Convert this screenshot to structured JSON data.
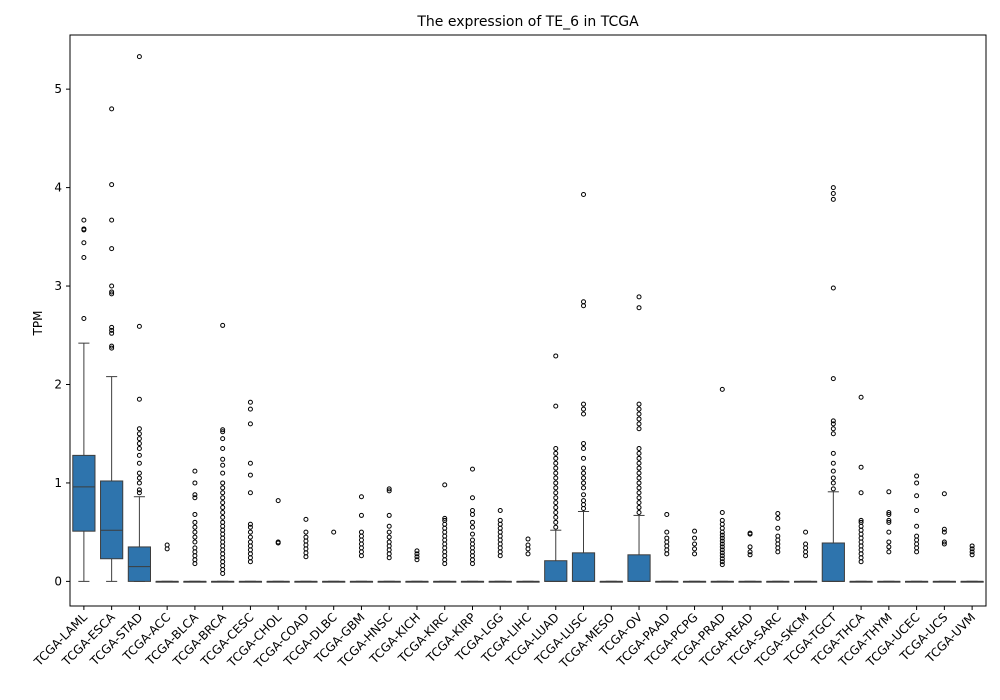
{
  "chart_data": {
    "type": "box",
    "title": "The expression of TE_6 in TCGA",
    "xlabel": "",
    "ylabel": "TPM",
    "ylim": [
      -0.25,
      5.55
    ],
    "yticks": [
      0,
      1,
      2,
      3,
      4,
      5
    ],
    "grid": false,
    "box_color": "#2e74ad",
    "categories": [
      "TCGA-LAML",
      "TCGA-ESCA",
      "TCGA-STAD",
      "TCGA-ACC",
      "TCGA-BLCA",
      "TCGA-BRCA",
      "TCGA-CESC",
      "TCGA-CHOL",
      "TCGA-COAD",
      "TCGA-DLBC",
      "TCGA-GBM",
      "TCGA-HNSC",
      "TCGA-KICH",
      "TCGA-KIRC",
      "TCGA-KIRP",
      "TCGA-LGG",
      "TCGA-LIHC",
      "TCGA-LUAD",
      "TCGA-LUSC",
      "TCGA-MESO",
      "TCGA-OV",
      "TCGA-PAAD",
      "TCGA-PCPG",
      "TCGA-PRAD",
      "TCGA-READ",
      "TCGA-SARC",
      "TCGA-SKCM",
      "TCGA-TGCT",
      "TCGA-THCA",
      "TCGA-THYM",
      "TCGA-UCEC",
      "TCGA-UCS",
      "TCGA-UVM"
    ],
    "boxes": [
      {
        "q1": 0.51,
        "median": 0.96,
        "q3": 1.28,
        "whisker_low": 0,
        "whisker_high": 2.42,
        "outliers": [
          2.67,
          3.29,
          3.44,
          3.57,
          3.58,
          3.67
        ]
      },
      {
        "q1": 0.23,
        "median": 0.52,
        "q3": 1.02,
        "whisker_low": 0,
        "whisker_high": 2.08,
        "outliers": [
          2.37,
          2.39,
          2.52,
          2.55,
          2.58,
          2.92,
          2.94,
          3.0,
          3.38,
          3.67,
          4.03,
          4.8
        ]
      },
      {
        "q1": 0,
        "median": 0.15,
        "q3": 0.35,
        "whisker_low": 0,
        "whisker_high": 0.86,
        "outliers": [
          0.9,
          0.93,
          1.0,
          1.05,
          1.1,
          1.2,
          1.28,
          1.35,
          1.4,
          1.45,
          1.5,
          1.55,
          1.85,
          2.59,
          5.33
        ]
      },
      {
        "q1": 0,
        "median": 0,
        "q3": 0,
        "whisker_low": 0,
        "whisker_high": 0,
        "outliers": [
          0.33,
          0.37
        ]
      },
      {
        "q1": 0,
        "median": 0,
        "q3": 0,
        "whisker_low": 0,
        "whisker_high": 0,
        "outliers": [
          0.18,
          0.22,
          0.26,
          0.3,
          0.34,
          0.4,
          0.45,
          0.5,
          0.55,
          0.6,
          0.68,
          0.85,
          0.88,
          1.0,
          1.12
        ]
      },
      {
        "q1": 0,
        "median": 0,
        "q3": 0,
        "whisker_low": 0,
        "whisker_high": 0,
        "outliers": [
          0.08,
          0.12,
          0.16,
          0.2,
          0.24,
          0.28,
          0.32,
          0.36,
          0.4,
          0.44,
          0.48,
          0.52,
          0.56,
          0.6,
          0.65,
          0.7,
          0.75,
          0.8,
          0.85,
          0.9,
          0.95,
          1.0,
          1.1,
          1.18,
          1.24,
          1.35,
          1.45,
          1.52,
          1.54,
          2.6
        ]
      },
      {
        "q1": 0,
        "median": 0,
        "q3": 0,
        "whisker_low": 0,
        "whisker_high": 0,
        "outliers": [
          0.2,
          0.24,
          0.28,
          0.32,
          0.36,
          0.4,
          0.45,
          0.5,
          0.55,
          0.58,
          0.9,
          1.08,
          1.2,
          1.6,
          1.75,
          1.82
        ]
      },
      {
        "q1": 0,
        "median": 0,
        "q3": 0,
        "whisker_low": 0,
        "whisker_high": 0,
        "outliers": [
          0.39,
          0.4,
          0.82
        ]
      },
      {
        "q1": 0,
        "median": 0,
        "q3": 0,
        "whisker_low": 0,
        "whisker_high": 0,
        "outliers": [
          0.25,
          0.29,
          0.33,
          0.37,
          0.41,
          0.45,
          0.5,
          0.63
        ]
      },
      {
        "q1": 0,
        "median": 0,
        "q3": 0,
        "whisker_low": 0,
        "whisker_high": 0,
        "outliers": [
          0.5
        ]
      },
      {
        "q1": 0,
        "median": 0,
        "q3": 0,
        "whisker_low": 0,
        "whisker_high": 0,
        "outliers": [
          0.26,
          0.3,
          0.34,
          0.38,
          0.42,
          0.46,
          0.5,
          0.67,
          0.86
        ]
      },
      {
        "q1": 0,
        "median": 0,
        "q3": 0,
        "whisker_low": 0,
        "whisker_high": 0,
        "outliers": [
          0.24,
          0.28,
          0.32,
          0.36,
          0.4,
          0.45,
          0.5,
          0.56,
          0.67,
          0.92,
          0.94
        ]
      },
      {
        "q1": 0,
        "median": 0,
        "q3": 0,
        "whisker_low": 0,
        "whisker_high": 0,
        "outliers": [
          0.22,
          0.25,
          0.28,
          0.31
        ]
      },
      {
        "q1": 0,
        "median": 0,
        "q3": 0,
        "whisker_low": 0,
        "whisker_high": 0,
        "outliers": [
          0.18,
          0.22,
          0.26,
          0.3,
          0.34,
          0.38,
          0.42,
          0.46,
          0.5,
          0.54,
          0.58,
          0.62,
          0.64,
          0.98
        ]
      },
      {
        "q1": 0,
        "median": 0,
        "q3": 0,
        "whisker_low": 0,
        "whisker_high": 0,
        "outliers": [
          0.18,
          0.22,
          0.26,
          0.3,
          0.34,
          0.38,
          0.42,
          0.48,
          0.55,
          0.6,
          0.68,
          0.72,
          0.85,
          1.14
        ]
      },
      {
        "q1": 0,
        "median": 0,
        "q3": 0,
        "whisker_low": 0,
        "whisker_high": 0,
        "outliers": [
          0.26,
          0.3,
          0.34,
          0.38,
          0.42,
          0.46,
          0.5,
          0.54,
          0.58,
          0.62,
          0.72
        ]
      },
      {
        "q1": 0,
        "median": 0,
        "q3": 0,
        "whisker_low": 0,
        "whisker_high": 0,
        "outliers": [
          0.28,
          0.33,
          0.37,
          0.43
        ]
      },
      {
        "q1": 0,
        "median": 0,
        "q3": 0.21,
        "whisker_low": 0,
        "whisker_high": 0.52,
        "outliers": [
          0.55,
          0.6,
          0.65,
          0.7,
          0.75,
          0.8,
          0.85,
          0.9,
          0.95,
          1.0,
          1.05,
          1.1,
          1.15,
          1.2,
          1.25,
          1.3,
          1.35,
          1.78,
          2.29
        ]
      },
      {
        "q1": 0,
        "median": 0,
        "q3": 0.29,
        "whisker_low": 0,
        "whisker_high": 0.71,
        "outliers": [
          0.74,
          0.78,
          0.82,
          0.88,
          0.95,
          1.0,
          1.05,
          1.1,
          1.15,
          1.25,
          1.35,
          1.4,
          1.7,
          1.75,
          1.8,
          2.8,
          2.84,
          3.93
        ]
      },
      {
        "q1": 0,
        "median": 0,
        "q3": 0,
        "whisker_low": 0,
        "whisker_high": 0,
        "outliers": []
      },
      {
        "q1": 0,
        "median": 0,
        "q3": 0.27,
        "whisker_low": 0,
        "whisker_high": 0.67,
        "outliers": [
          0.7,
          0.75,
          0.8,
          0.85,
          0.9,
          0.95,
          1.0,
          1.05,
          1.1,
          1.15,
          1.2,
          1.25,
          1.3,
          1.35,
          1.55,
          1.6,
          1.65,
          1.7,
          1.75,
          1.8,
          2.78,
          2.89
        ]
      },
      {
        "q1": 0,
        "median": 0,
        "q3": 0,
        "whisker_low": 0,
        "whisker_high": 0,
        "outliers": [
          0.28,
          0.32,
          0.36,
          0.4,
          0.44,
          0.5,
          0.68
        ]
      },
      {
        "q1": 0,
        "median": 0,
        "q3": 0,
        "whisker_low": 0,
        "whisker_high": 0,
        "outliers": [
          0.28,
          0.33,
          0.38,
          0.44,
          0.51
        ]
      },
      {
        "q1": 0,
        "median": 0,
        "q3": 0,
        "whisker_low": 0,
        "whisker_high": 0,
        "outliers": [
          0.17,
          0.2,
          0.23,
          0.26,
          0.29,
          0.32,
          0.35,
          0.38,
          0.41,
          0.44,
          0.47,
          0.5,
          0.54,
          0.58,
          0.62,
          0.7,
          1.95
        ]
      },
      {
        "q1": 0,
        "median": 0,
        "q3": 0,
        "whisker_low": 0,
        "whisker_high": 0,
        "outliers": [
          0.27,
          0.3,
          0.35,
          0.48,
          0.49
        ]
      },
      {
        "q1": 0,
        "median": 0,
        "q3": 0,
        "whisker_low": 0,
        "whisker_high": 0,
        "outliers": [
          0.3,
          0.34,
          0.38,
          0.42,
          0.46,
          0.54,
          0.64,
          0.69
        ]
      },
      {
        "q1": 0,
        "median": 0,
        "q3": 0,
        "whisker_low": 0,
        "whisker_high": 0,
        "outliers": [
          0.26,
          0.3,
          0.34,
          0.38,
          0.5
        ]
      },
      {
        "q1": 0,
        "median": 0,
        "q3": 0.39,
        "whisker_low": 0,
        "whisker_high": 0.91,
        "outliers": [
          0.94,
          1.0,
          1.05,
          1.12,
          1.2,
          1.3,
          1.5,
          1.55,
          1.6,
          1.63,
          2.06,
          2.98,
          3.88,
          3.94,
          4.0
        ]
      },
      {
        "q1": 0,
        "median": 0,
        "q3": 0,
        "whisker_low": 0,
        "whisker_high": 0,
        "outliers": [
          0.2,
          0.24,
          0.28,
          0.32,
          0.36,
          0.4,
          0.44,
          0.48,
          0.52,
          0.56,
          0.6,
          0.62,
          0.9,
          1.16,
          1.87
        ]
      },
      {
        "q1": 0,
        "median": 0,
        "q3": 0,
        "whisker_low": 0,
        "whisker_high": 0,
        "outliers": [
          0.3,
          0.35,
          0.4,
          0.5,
          0.6,
          0.62,
          0.68,
          0.7,
          0.91
        ]
      },
      {
        "q1": 0,
        "median": 0,
        "q3": 0,
        "whisker_low": 0,
        "whisker_high": 0,
        "outliers": [
          0.3,
          0.34,
          0.38,
          0.42,
          0.46,
          0.56,
          0.72,
          0.87,
          1.0,
          1.07
        ]
      },
      {
        "q1": 0,
        "median": 0,
        "q3": 0,
        "whisker_low": 0,
        "whisker_high": 0,
        "outliers": [
          0.38,
          0.4,
          0.5,
          0.53,
          0.89
        ]
      },
      {
        "q1": 0,
        "median": 0,
        "q3": 0,
        "whisker_low": 0,
        "whisker_high": 0,
        "outliers": [
          0.27,
          0.3,
          0.33,
          0.36
        ]
      }
    ]
  }
}
